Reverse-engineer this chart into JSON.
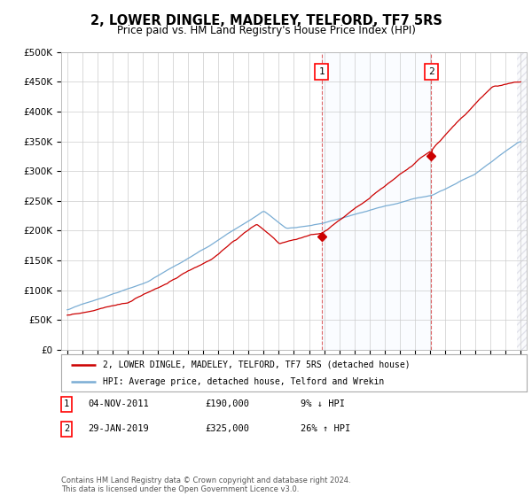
{
  "title": "2, LOWER DINGLE, MADELEY, TELFORD, TF7 5RS",
  "subtitle": "Price paid vs. HM Land Registry's House Price Index (HPI)",
  "background_color": "#ffffff",
  "plot_bg_color": "#ffffff",
  "grid_color": "#cccccc",
  "hpi_line_color": "#7aadd4",
  "price_line_color": "#cc0000",
  "sale1_year": 2011.833,
  "sale1_price": 190000,
  "sale2_year": 2019.083,
  "sale2_price": 325000,
  "ylim": [
    0,
    500000
  ],
  "yticks": [
    0,
    50000,
    100000,
    150000,
    200000,
    250000,
    300000,
    350000,
    400000,
    450000,
    500000
  ],
  "xlim_min": 1994.6,
  "xlim_max": 2025.4,
  "legend_entry1": "2, LOWER DINGLE, MADELEY, TELFORD, TF7 5RS (detached house)",
  "legend_entry2": "HPI: Average price, detached house, Telford and Wrekin",
  "table_row1": [
    "1",
    "04-NOV-2011",
    "£190,000",
    "9% ↓ HPI"
  ],
  "table_row2": [
    "2",
    "29-JAN-2019",
    "£325,000",
    "26% ↑ HPI"
  ],
  "footer": "Contains HM Land Registry data © Crown copyright and database right 2024.\nThis data is licensed under the Open Government Licence v3.0.",
  "shade_color": "#ddeeff",
  "hatch_color": "#cccccc"
}
